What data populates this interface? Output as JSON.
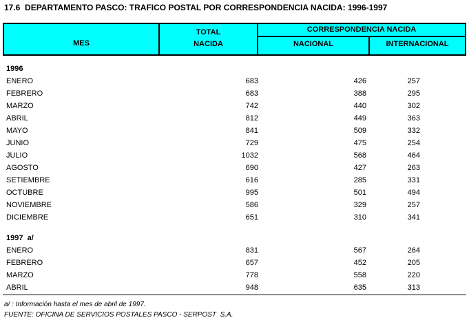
{
  "title": "17.6  DEPARTAMENTO PASCO: TRAFICO POSTAL POR CORRESPONDENCIA NACIDA: 1996-1997",
  "colors": {
    "header_bg": "#00FFFF",
    "border": "#000000",
    "text": "#000000"
  },
  "table": {
    "header": {
      "mes": "MES",
      "total_line1": "TOTAL",
      "total_line2": "NACIDA",
      "group": "CORRESPONDENCIA NACIDA",
      "nacional": "NACIONAL",
      "internacional": "INTERNACIONAL"
    },
    "sections": [
      {
        "year_label": "1996",
        "rows": [
          {
            "mes": "ENERO",
            "total": 683,
            "nacional": 426,
            "internacional": 257
          },
          {
            "mes": "FEBRERO",
            "total": 683,
            "nacional": 388,
            "internacional": 295
          },
          {
            "mes": "MARZO",
            "total": 742,
            "nacional": 440,
            "internacional": 302
          },
          {
            "mes": "ABRIL",
            "total": 812,
            "nacional": 449,
            "internacional": 363
          },
          {
            "mes": "MAYO",
            "total": 841,
            "nacional": 509,
            "internacional": 332
          },
          {
            "mes": "JUNIO",
            "total": 729,
            "nacional": 475,
            "internacional": 254
          },
          {
            "mes": "JULIO",
            "total": 1032,
            "nacional": 568,
            "internacional": 464
          },
          {
            "mes": "AGOSTO",
            "total": 690,
            "nacional": 427,
            "internacional": 263
          },
          {
            "mes": "SETIEMBRE",
            "total": 616,
            "nacional": 285,
            "internacional": 331
          },
          {
            "mes": "OCTUBRE",
            "total": 995,
            "nacional": 501,
            "internacional": 494
          },
          {
            "mes": "NOVIEMBRE",
            "total": 586,
            "nacional": 329,
            "internacional": 257
          },
          {
            "mes": "DICIEMBRE",
            "total": 651,
            "nacional": 310,
            "internacional": 341
          }
        ]
      },
      {
        "year_label": "1997  a/",
        "rows": [
          {
            "mes": "ENERO",
            "total": 831,
            "nacional": 567,
            "internacional": 264
          },
          {
            "mes": "FEBRERO",
            "total": 657,
            "nacional": 452,
            "internacional": 205
          },
          {
            "mes": "MARZO",
            "total": 778,
            "nacional": 558,
            "internacional": 220
          },
          {
            "mes": "ABRIL",
            "total": 948,
            "nacional": 635,
            "internacional": 313
          }
        ]
      }
    ]
  },
  "footnote": "a/ : Información hasta el mes de abril de 1997.",
  "source": "FUENTE: OFICINA DE SERVICIOS POSTALES PASCO - SERPOST  S.A."
}
